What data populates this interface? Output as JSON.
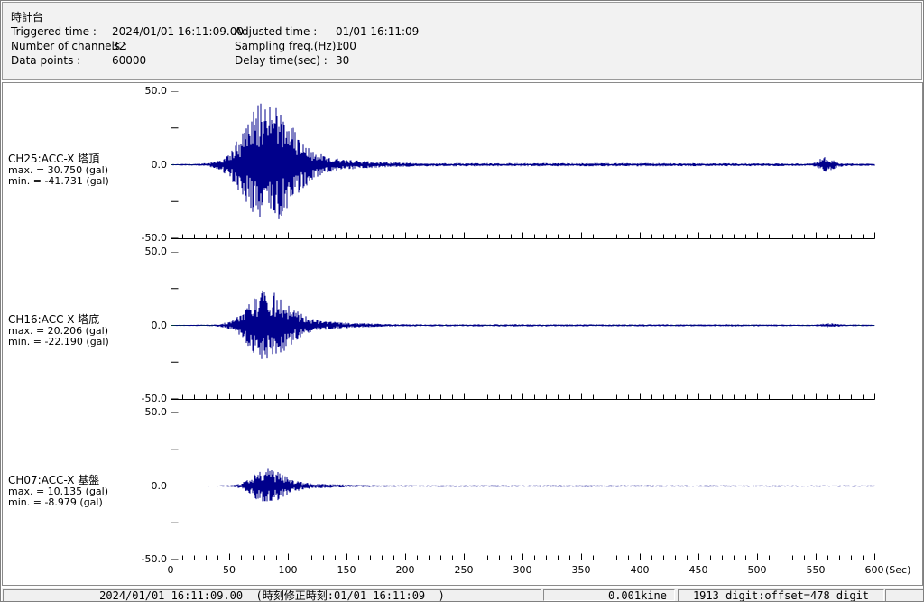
{
  "header": {
    "title": "時計台",
    "fields": [
      {
        "label": "Triggered time :",
        "value": "2024/01/01 16:11:09.00",
        "label2": "Adjusted time :",
        "value2": "01/01 16:11:09"
      },
      {
        "label": "Number of channels :",
        "value": "32",
        "label2": "Sampling freq.(Hz) :",
        "value2": "100"
      },
      {
        "label": "Data points :",
        "value": "60000",
        "label2": "Delay time(sec) :",
        "value2": "30"
      }
    ]
  },
  "colors": {
    "waveform": "#00008b",
    "zero_line": "#006e00",
    "axis": "#000000",
    "panel_bg": "#f2f2f2",
    "status_bg": "#f0f0f0"
  },
  "xaxis": {
    "min": 0,
    "max": 600,
    "minor_step": 10,
    "major_step": 50,
    "tick_labels": [
      "0",
      "50",
      "100",
      "150",
      "200",
      "250",
      "300",
      "350",
      "400",
      "450",
      "500",
      "550",
      "600"
    ],
    "unit": "(Sec)"
  },
  "chart_data": [
    {
      "type": "line",
      "channel": "CH25:ACC-X 塔頂",
      "max_label": "max. = 30.750 (gal)",
      "min_label": "min. = -41.731 (gal)",
      "max_gal": 30.75,
      "min_gal": -41.731,
      "unit": "gal",
      "ylim": [
        -50,
        50
      ],
      "ytick_values": [
        50,
        25,
        0,
        -25,
        -50
      ],
      "ytick_labels": [
        "50.0",
        "0.0",
        "-50.0"
      ],
      "xlim": [
        0,
        600
      ],
      "waveform": {
        "floor": 0.25,
        "bursts": [
          {
            "c": 80,
            "sl": 17,
            "sr": 21,
            "a": 40
          },
          {
            "c": 105,
            "sl": 28,
            "sr": 45,
            "a": 4
          },
          {
            "c": 557,
            "sl": 4,
            "sr": 7,
            "a": 4.5
          },
          {
            "c": 340,
            "sl": 230,
            "sr": 280,
            "a": 0.85
          }
        ]
      }
    },
    {
      "type": "line",
      "channel": "CH16:ACC-X 塔底",
      "max_label": "max. = 20.206 (gal)",
      "min_label": "min. = -22.190 (gal)",
      "max_gal": 20.206,
      "min_gal": -22.19,
      "unit": "gal",
      "ylim": [
        -50,
        50
      ],
      "ytick_values": [
        50,
        25,
        0,
        -25,
        -50
      ],
      "ytick_labels": [
        "50.0",
        "0.0",
        "-50.0"
      ],
      "xlim": [
        0,
        600
      ],
      "waveform": {
        "floor": 0.2,
        "bursts": [
          {
            "c": 80,
            "sl": 14,
            "sr": 18,
            "a": 22
          },
          {
            "c": 103,
            "sl": 26,
            "sr": 40,
            "a": 2.6
          },
          {
            "c": 560,
            "sl": 4,
            "sr": 6,
            "a": 0.9
          },
          {
            "c": 340,
            "sl": 230,
            "sr": 280,
            "a": 0.55
          }
        ]
      }
    },
    {
      "type": "line",
      "channel": "CH07:ACC-X 基盤",
      "max_label": "max. = 10.135 (gal)",
      "min_label": "min. = -8.979 (gal)",
      "max_gal": 10.135,
      "min_gal": -8.979,
      "unit": "gal",
      "ylim": [
        -50,
        50
      ],
      "ytick_values": [
        50,
        25,
        0,
        -25,
        -50
      ],
      "ytick_labels": [
        "50.0",
        "0.0",
        "-50.0"
      ],
      "xlim": [
        0,
        600
      ],
      "waveform": {
        "floor": 0.18,
        "bursts": [
          {
            "c": 80,
            "sl": 10,
            "sr": 15,
            "a": 10.5
          },
          {
            "c": 100,
            "sl": 24,
            "sr": 36,
            "a": 1.3
          },
          {
            "c": 340,
            "sl": 230,
            "sr": 280,
            "a": 0.4
          }
        ]
      }
    }
  ],
  "statusbar": {
    "sections": [
      "2024/01/01 16:11:09.00  (時刻修正時刻:01/01 16:11:09  )",
      "0.001kine",
      "1913 digit:offset=478 digit",
      ""
    ]
  }
}
